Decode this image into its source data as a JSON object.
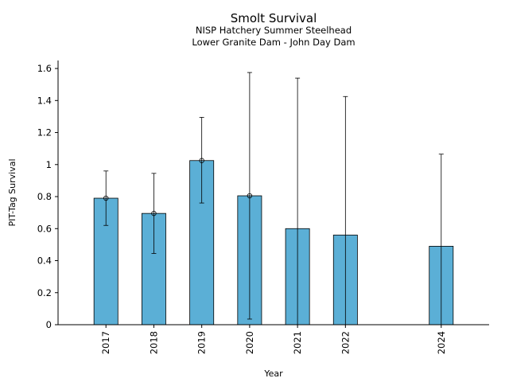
{
  "chart_data": {
    "type": "bar",
    "title": "Smolt Survival",
    "subtitle_lines": [
      "NISP Hatchery Summer Steelhead",
      "Lower Granite Dam - John Day Dam"
    ],
    "xlabel": "Year",
    "ylabel": "PIT-Tag Survival",
    "categories": [
      "2017",
      "2018",
      "2019",
      "2020",
      "2021",
      "2022",
      "2024"
    ],
    "x": [
      2017,
      2018,
      2019,
      2020,
      2021,
      2022,
      2024
    ],
    "values": [
      0.79,
      0.695,
      1.025,
      0.805,
      0.6,
      0.56,
      0.49
    ],
    "error_low": [
      0.62,
      0.445,
      0.76,
      0.035,
      null,
      null,
      null
    ],
    "error_high": [
      0.96,
      0.945,
      1.295,
      1.575,
      1.54,
      1.425,
      1.065
    ],
    "point_marker": [
      true,
      true,
      true,
      true,
      false,
      false,
      false
    ],
    "ylim": [
      0,
      1.65
    ],
    "xlim": [
      2016.0,
      2025.0
    ],
    "yticks": [
      0,
      0.2,
      0.4,
      0.6,
      0.8,
      1,
      1.2,
      1.4,
      1.6
    ],
    "ytick_labels": [
      "0",
      "0.2",
      "0.4",
      "0.6",
      "0.8",
      "1",
      "1.2",
      "1.4",
      "1.6"
    ],
    "grid": false,
    "bar_color": "#5bafd6",
    "edge_color": "#000000"
  }
}
